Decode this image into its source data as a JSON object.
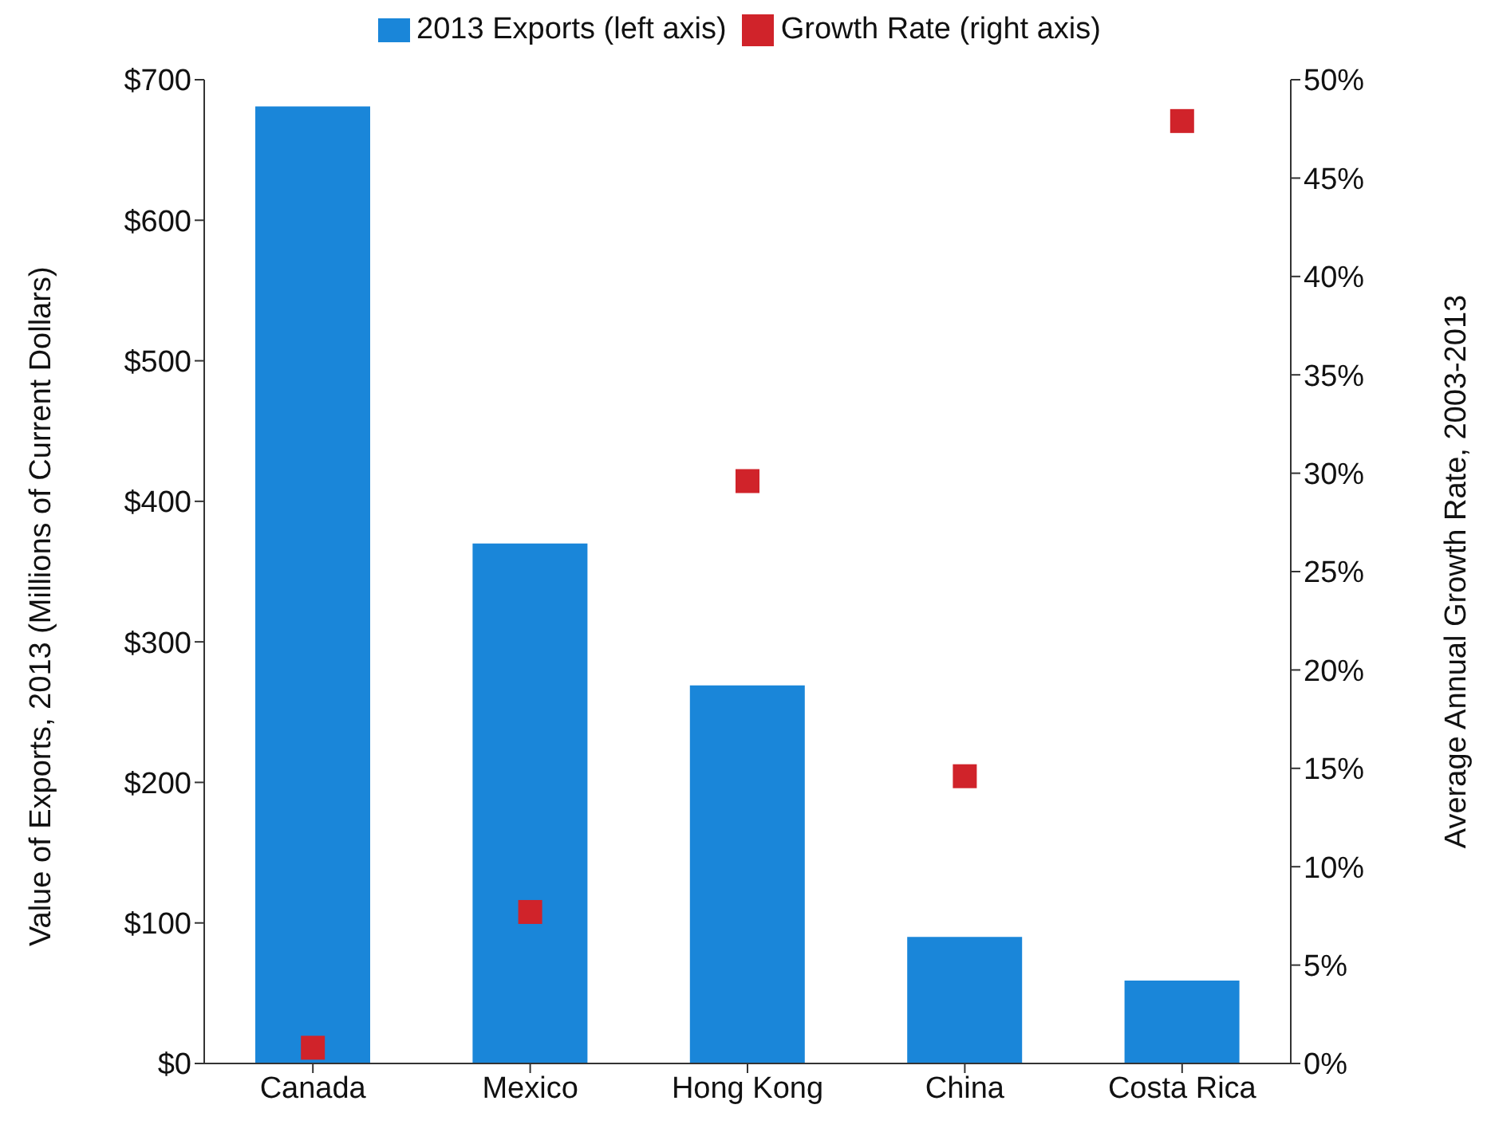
{
  "chart_data": {
    "type": "bar",
    "categories": [
      "Canada",
      "Mexico",
      "Hong Kong",
      "China",
      "Costa Rica"
    ],
    "series": [
      {
        "name": "2013 Exports (left axis)",
        "color": "#1a86d9",
        "values": [
          681,
          370,
          269,
          90,
          59
        ]
      },
      {
        "name": "Growth Rate (right axis)",
        "type": "scatter",
        "axis": "y2",
        "color": "#d0232a",
        "marker": "square",
        "values": [
          0.8,
          7.7,
          29.6,
          14.6,
          47.9
        ]
      }
    ],
    "ylabel": "Value of Exports, 2013 (Millions of Current Dollars)",
    "y2label": "Average Annual Growth Rate, 2003-2013",
    "ylim": [
      0,
      700
    ],
    "yticks": [
      {
        "value": 0,
        "label": "$0"
      },
      {
        "value": 100,
        "label": "$100"
      },
      {
        "value": 200,
        "label": "$200"
      },
      {
        "value": 300,
        "label": "$300"
      },
      {
        "value": 400,
        "label": "$400"
      },
      {
        "value": 500,
        "label": "$500"
      },
      {
        "value": 600,
        "label": "$600"
      },
      {
        "value": 700,
        "label": "$700"
      }
    ],
    "y2lim": [
      0,
      50
    ],
    "y2ticks": [
      {
        "value": 0,
        "label": "0%"
      },
      {
        "value": 5,
        "label": "5%"
      },
      {
        "value": 10,
        "label": "10%"
      },
      {
        "value": 15,
        "label": "15%"
      },
      {
        "value": 20,
        "label": "20%"
      },
      {
        "value": 25,
        "label": "25%"
      },
      {
        "value": 30,
        "label": "30%"
      },
      {
        "value": 35,
        "label": "35%"
      },
      {
        "value": 40,
        "label": "40%"
      },
      {
        "value": 45,
        "label": "45%"
      },
      {
        "value": 50,
        "label": "50%"
      }
    ],
    "grid": false,
    "legend": "top"
  }
}
